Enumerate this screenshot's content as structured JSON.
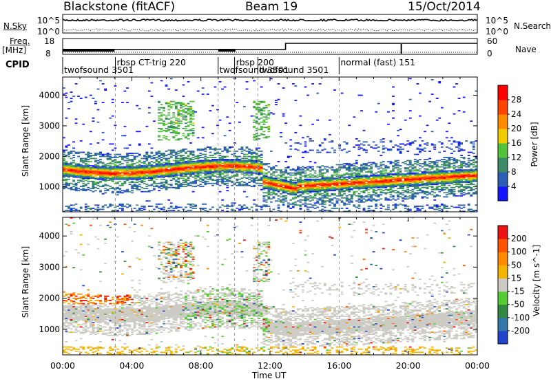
{
  "header": {
    "station": "Blackstone (fitACF)",
    "beam": "Beam 19",
    "date": "15/Oct/2014"
  },
  "strip_labels": {
    "nsky": "N.Sky",
    "nsearch": "N.Search",
    "freq": "Freq.",
    "freq_unit": "[MHz]",
    "nave": "Nave",
    "cpid": "CPID"
  },
  "strip_ticks": {
    "noise_top": "10^5",
    "noise_bottom": "10^0",
    "freq_left_top": "18",
    "freq_left_bottom": "8",
    "freq_right_top": "60",
    "freq_right_bottom": "0"
  },
  "cpid_modes": [
    {
      "label": "twofsound 3501",
      "start_hour": 0
    },
    {
      "label": "rbsp CT-trig 220",
      "start_hour": 3.05
    },
    {
      "label": "twofsound 3501",
      "start_hour": 9.0
    },
    {
      "label": "rbsp 200",
      "start_hour": 9.95
    },
    {
      "label": "twofsound 3501",
      "start_hour": 11.3
    },
    {
      "label": "normal (fast) 151",
      "start_hour": 16.0
    }
  ],
  "chart_data": [
    {
      "type": "heatmap",
      "name": "power",
      "ylabel": "Slant Range [km]",
      "xlabel": "Time UT",
      "xlim": [
        0,
        24
      ],
      "ylim": [
        180,
        4600
      ],
      "x_ticks": [
        "00:00",
        "04:00",
        "08:00",
        "12:00",
        "16:00",
        "20:00",
        "00:00"
      ],
      "y_ticks": [
        1000,
        2000,
        3000,
        4000
      ],
      "colorbar": {
        "label": "Power [dB]",
        "ticks": [
          4,
          8,
          12,
          16,
          20,
          24,
          28
        ],
        "colors": [
          "#1515ff",
          "#2a5fb5",
          "#3c8a68",
          "#52c23a",
          "#f0cc00",
          "#ff8c00",
          "#ff4400",
          "#ff0000"
        ]
      }
    },
    {
      "type": "heatmap",
      "name": "velocity",
      "ylabel": "Slant Range [km]",
      "xlabel": "Time UT",
      "xlim": [
        0,
        24
      ],
      "ylim": [
        180,
        4600
      ],
      "x_ticks": [
        "00:00",
        "04:00",
        "08:00",
        "12:00",
        "16:00",
        "20:00",
        "00:00"
      ],
      "y_ticks": [
        1000,
        2000,
        3000,
        4000
      ],
      "colorbar": {
        "label": "Velocity [m s^-1]",
        "ticks": [
          "200",
          "100",
          "50",
          "15",
          "-15",
          "-50",
          "-100",
          "-200"
        ],
        "colors": [
          "#2244cc",
          "#3377aa",
          "#338844",
          "#55cc33",
          "#cccbc4",
          "#f4b400",
          "#ff8c00",
          "#ff5500",
          "#ee1111"
        ]
      }
    }
  ],
  "x_axis_title": "Time UT"
}
